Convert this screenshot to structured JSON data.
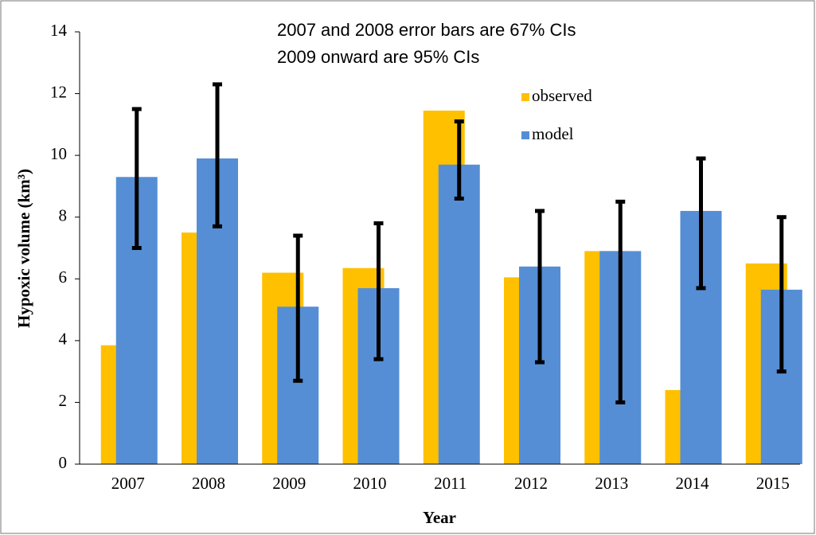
{
  "chart_data": {
    "type": "bar",
    "annotations": [
      "2007 and 2008 error bars are 67% CIs",
      "2009 onward are 95% CIs"
    ],
    "xlabel": "Year",
    "ylabel": "Hypoxic volume (km³)",
    "categories": [
      "2007",
      "2008",
      "2009",
      "2010",
      "2011",
      "2012",
      "2013",
      "2014",
      "2015"
    ],
    "series": [
      {
        "name": "observed",
        "color": "#ffc000",
        "values": [
          3.85,
          7.5,
          6.2,
          6.35,
          11.45,
          6.05,
          6.9,
          2.4,
          6.5
        ]
      },
      {
        "name": "model",
        "color": "#558ed5",
        "values": [
          9.3,
          9.9,
          5.1,
          5.7,
          9.7,
          6.4,
          6.9,
          8.2,
          5.65
        ],
        "lower": [
          7.0,
          7.7,
          2.7,
          3.4,
          8.6,
          3.3,
          2.0,
          5.7,
          3.0
        ],
        "upper": [
          11.5,
          12.3,
          7.4,
          7.8,
          11.1,
          8.2,
          8.5,
          9.9,
          8.0
        ]
      }
    ],
    "ylim": [
      0,
      14
    ],
    "yticks": [
      0,
      2,
      4,
      6,
      8,
      10,
      12,
      14
    ],
    "grid": false
  }
}
